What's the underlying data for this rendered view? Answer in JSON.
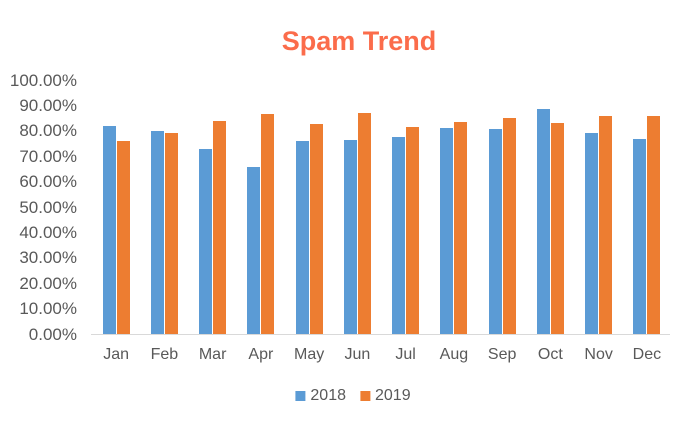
{
  "title": "Spam Trend",
  "colors": {
    "title": "#FB6C4B",
    "axis_label": "#595959",
    "axis_line": "#D9D9D9",
    "series_2018": "#5B9BD5",
    "series_2019": "#ED7D31"
  },
  "chart_data": {
    "type": "bar",
    "title": "Spam Trend",
    "categories": [
      "Jan",
      "Feb",
      "Mar",
      "Apr",
      "May",
      "Jun",
      "Jul",
      "Aug",
      "Sep",
      "Oct",
      "Nov",
      "Dec"
    ],
    "series": [
      {
        "name": "2018",
        "color": "#5B9BD5",
        "values": [
          82.0,
          79.8,
          72.7,
          65.6,
          76.0,
          76.4,
          77.6,
          81.1,
          80.8,
          88.6,
          79.0,
          76.6
        ]
      },
      {
        "name": "2019",
        "color": "#ED7D31",
        "values": [
          76.0,
          79.3,
          84.0,
          86.5,
          82.5,
          87.0,
          81.5,
          83.6,
          85.2,
          82.9,
          85.7,
          85.8
        ]
      }
    ],
    "ylim": [
      0,
      100
    ],
    "ytick_labels": [
      "0.00%",
      "10.00%",
      "20.00%",
      "30.00%",
      "40.00%",
      "50.00%",
      "60.00%",
      "70.00%",
      "80.00%",
      "90.00%",
      "100.00%"
    ],
    "grid": false,
    "legend_position": "bottom"
  },
  "legend": {
    "items": [
      {
        "label": "2018",
        "color": "#5B9BD5"
      },
      {
        "label": "2019",
        "color": "#ED7D31"
      }
    ]
  }
}
